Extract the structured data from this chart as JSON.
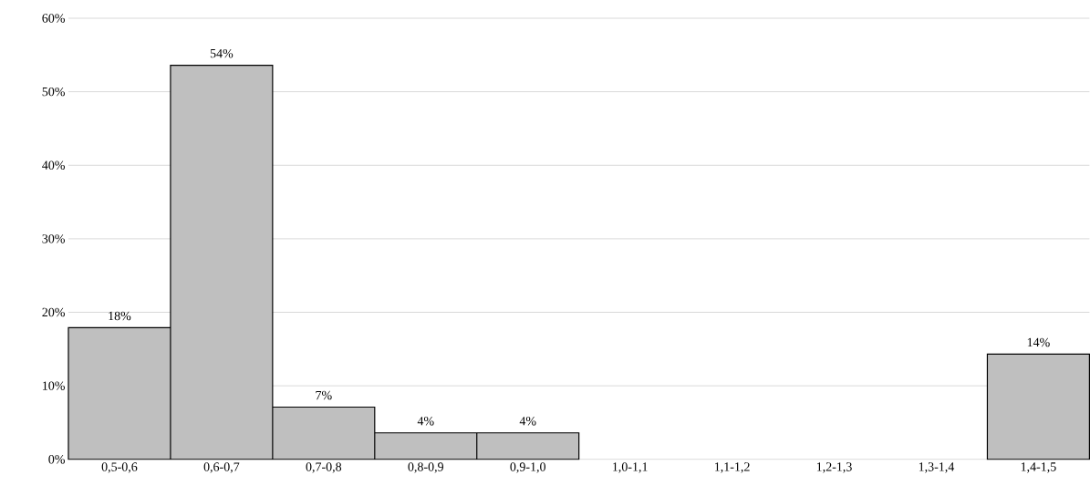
{
  "chart_data": {
    "type": "bar",
    "categories": [
      "0,5-0,6",
      "0,6-0,7",
      "0,7-0,8",
      "0,8-0,9",
      "0,9-1,0",
      "1,0-1,1",
      "1,1-1,2",
      "1,2-1,3",
      "1,3-1,4",
      "1,4-1,5"
    ],
    "values": [
      17.9,
      53.6,
      7.1,
      3.6,
      3.6,
      null,
      null,
      null,
      null,
      14.3
    ],
    "value_labels": [
      "18%",
      "54%",
      "7%",
      "4%",
      "4%",
      null,
      null,
      null,
      null,
      "14%"
    ],
    "color": "#bfbfbf",
    "ylim": [
      0,
      60
    ],
    "yticks": [
      {
        "value": 0,
        "label": "0%"
      },
      {
        "value": 10,
        "label": "10%"
      },
      {
        "value": 20,
        "label": "20%"
      },
      {
        "value": 30,
        "label": "30%"
      },
      {
        "value": 40,
        "label": "40%"
      },
      {
        "value": 50,
        "label": "50%"
      },
      {
        "value": 60,
        "label": "60%"
      }
    ],
    "grid": true
  }
}
